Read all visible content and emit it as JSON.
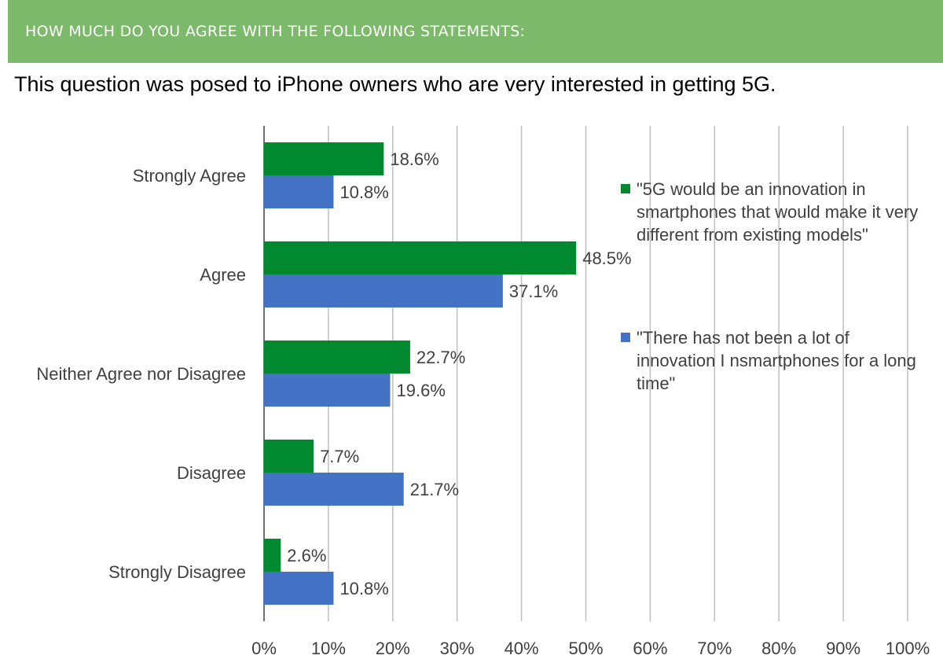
{
  "header": {
    "title": "HOW MUCH DO YOU AGREE WITH THE FOLLOWING STATEMENTS:"
  },
  "subtitle": "This question was posed to iPhone owners who are very interested in getting 5G.",
  "chart_data": {
    "type": "bar",
    "orientation": "horizontal",
    "categories": [
      "Strongly Agree",
      "Agree",
      "Neither Agree nor Disagree",
      "Disagree",
      "Strongly Disagree"
    ],
    "series": [
      {
        "name": "\"5G would be an innovation in smartphones that would make it very different from existing models\"",
        "color": "#00892f",
        "values": [
          18.6,
          48.5,
          22.7,
          7.7,
          2.6
        ],
        "labels": [
          "18.6%",
          "48.5%",
          "22.7%",
          "7.7%",
          "2.6%"
        ]
      },
      {
        "name": "\"There has not been a lot of innovation I nsmartphones for a long time\"",
        "color": "#4472c4",
        "values": [
          10.8,
          37.1,
          19.6,
          21.7,
          10.8
        ],
        "labels": [
          "10.8%",
          "37.1%",
          "19.6%",
          "21.7%",
          "10.8%"
        ]
      }
    ],
    "xlim": [
      0,
      100
    ],
    "xticks": [
      "0%",
      "10%",
      "20%",
      "30%",
      "40%",
      "50%",
      "60%",
      "70%",
      "80%",
      "90%",
      "100%"
    ],
    "grid": true,
    "legend_position": "right"
  }
}
